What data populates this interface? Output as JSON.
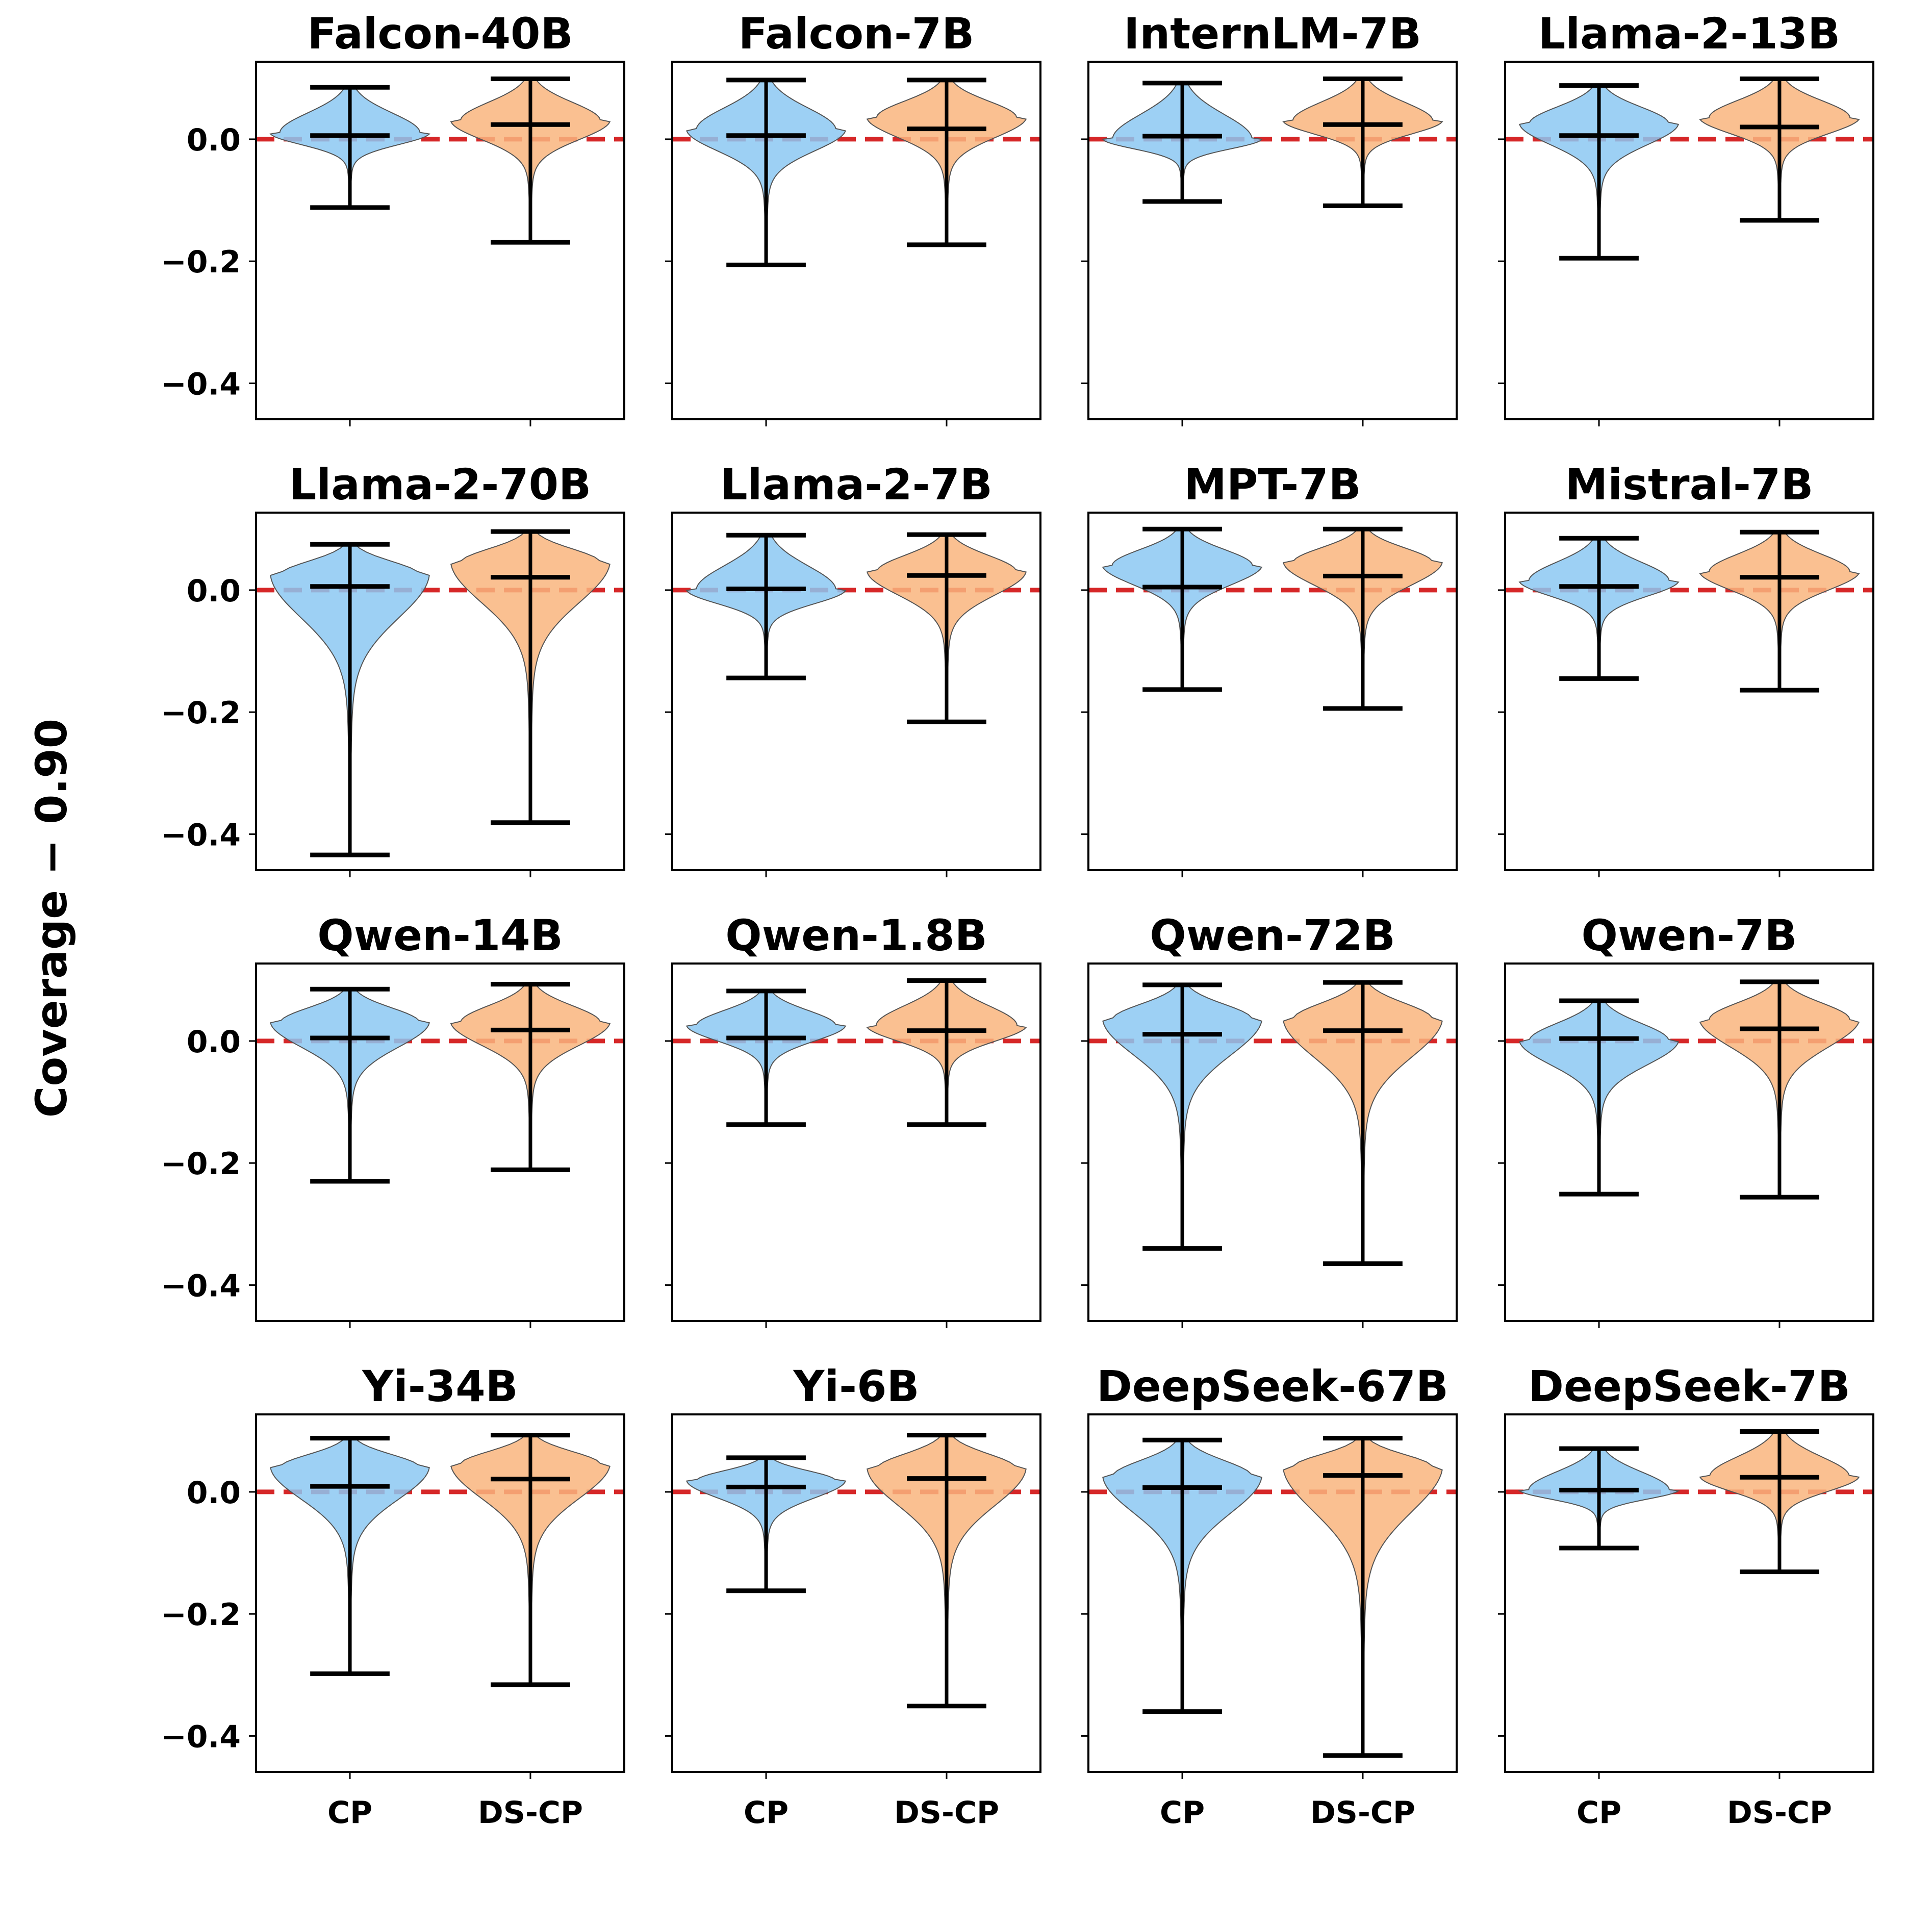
{
  "chart_data": {
    "type": "violin",
    "ylabel": "Coverage − 0.90",
    "categories": [
      "CP",
      "DS-CP"
    ],
    "colors": {
      "CP": "#8CC8F2",
      "DS-CP": "#F9B57E",
      "reference_line": "#D62728",
      "whiskers": "#000000",
      "violin_edge": "#555555"
    },
    "reference_line": {
      "y": 0.0,
      "style": "dashed"
    },
    "ylim": [
      -0.459,
      0.127
    ],
    "yticks": [
      0.0,
      -0.2,
      -0.4
    ],
    "ytick_labels": [
      "0.0",
      "−0.2",
      "−0.4"
    ],
    "grid": false,
    "layout": {
      "rows": 4,
      "cols": 4
    },
    "panels": [
      {
        "title": "Falcon-40B",
        "CP": {
          "max": 0.085,
          "median": 0.006,
          "min": -0.112,
          "mode": 0.01
        },
        "DS-CP": {
          "max": 0.099,
          "median": 0.024,
          "min": -0.169,
          "mode": 0.03
        }
      },
      {
        "title": "Falcon-7B",
        "CP": {
          "max": 0.097,
          "median": 0.006,
          "min": -0.206,
          "mode": 0.015
        },
        "DS-CP": {
          "max": 0.097,
          "median": 0.017,
          "min": -0.173,
          "mode": 0.035
        }
      },
      {
        "title": "InternLM-7B",
        "CP": {
          "max": 0.092,
          "median": 0.005,
          "min": -0.102,
          "mode": 0.0
        },
        "DS-CP": {
          "max": 0.099,
          "median": 0.024,
          "min": -0.109,
          "mode": 0.03
        }
      },
      {
        "title": "Llama-2-13B",
        "CP": {
          "max": 0.088,
          "median": 0.006,
          "min": -0.195,
          "mode": 0.025
        },
        "DS-CP": {
          "max": 0.099,
          "median": 0.02,
          "min": -0.133,
          "mode": 0.035
        }
      },
      {
        "title": "Llama-2-70B",
        "CP": {
          "max": 0.075,
          "median": 0.006,
          "min": -0.434,
          "mode": 0.025
        },
        "DS-CP": {
          "max": 0.096,
          "median": 0.021,
          "min": -0.381,
          "mode": 0.045
        }
      },
      {
        "title": "Llama-2-7B",
        "CP": {
          "max": 0.09,
          "median": 0.002,
          "min": -0.144,
          "mode": 0.0
        },
        "DS-CP": {
          "max": 0.091,
          "median": 0.024,
          "min": -0.216,
          "mode": 0.03
        }
      },
      {
        "title": "MPT-7B",
        "CP": {
          "max": 0.1,
          "median": 0.005,
          "min": -0.163,
          "mode": 0.04
        },
        "DS-CP": {
          "max": 0.1,
          "median": 0.023,
          "min": -0.194,
          "mode": 0.045
        }
      },
      {
        "title": "Mistral-7B",
        "CP": {
          "max": 0.085,
          "median": 0.006,
          "min": -0.145,
          "mode": 0.015
        },
        "DS-CP": {
          "max": 0.095,
          "median": 0.021,
          "min": -0.164,
          "mode": 0.03
        }
      },
      {
        "title": "Qwen-14B",
        "CP": {
          "max": 0.085,
          "median": 0.005,
          "min": -0.23,
          "mode": 0.03
        },
        "DS-CP": {
          "max": 0.093,
          "median": 0.018,
          "min": -0.211,
          "mode": 0.03
        }
      },
      {
        "title": "Qwen-1.8B",
        "CP": {
          "max": 0.082,
          "median": 0.005,
          "min": -0.137,
          "mode": 0.025
        },
        "DS-CP": {
          "max": 0.099,
          "median": 0.017,
          "min": -0.137,
          "mode": 0.025
        }
      },
      {
        "title": "Qwen-72B",
        "CP": {
          "max": 0.092,
          "median": 0.011,
          "min": -0.34,
          "mode": 0.035
        },
        "DS-CP": {
          "max": 0.096,
          "median": 0.017,
          "min": -0.365,
          "mode": 0.035
        }
      },
      {
        "title": "Qwen-7B",
        "CP": {
          "max": 0.066,
          "median": 0.004,
          "min": -0.251,
          "mode": 0.0
        },
        "DS-CP": {
          "max": 0.097,
          "median": 0.02,
          "min": -0.256,
          "mode": 0.035
        }
      },
      {
        "title": "Yi-34B",
        "CP": {
          "max": 0.088,
          "median": 0.009,
          "min": -0.298,
          "mode": 0.04
        },
        "DS-CP": {
          "max": 0.093,
          "median": 0.021,
          "min": -0.316,
          "mode": 0.045
        }
      },
      {
        "title": "Yi-6B",
        "CP": {
          "max": 0.056,
          "median": 0.008,
          "min": -0.162,
          "mode": 0.018
        },
        "DS-CP": {
          "max": 0.093,
          "median": 0.022,
          "min": -0.351,
          "mode": 0.038
        }
      },
      {
        "title": "DeepSeek-67B",
        "CP": {
          "max": 0.085,
          "median": 0.007,
          "min": -0.36,
          "mode": 0.025
        },
        "DS-CP": {
          "max": 0.088,
          "median": 0.027,
          "min": -0.432,
          "mode": 0.04
        }
      },
      {
        "title": "DeepSeek-7B",
        "CP": {
          "max": 0.071,
          "median": 0.003,
          "min": -0.092,
          "mode": 0.003
        },
        "DS-CP": {
          "max": 0.099,
          "median": 0.024,
          "min": -0.131,
          "mode": 0.025
        }
      }
    ]
  }
}
